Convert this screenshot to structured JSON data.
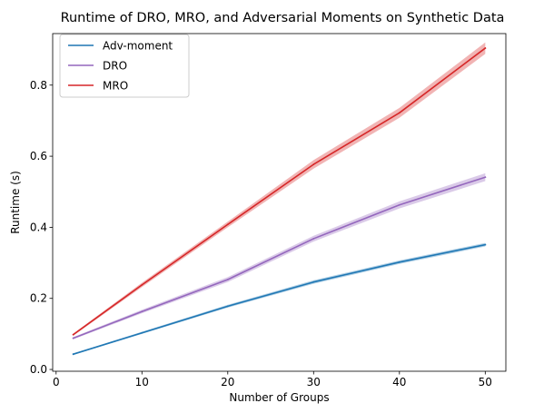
{
  "chart_data": {
    "type": "line",
    "title": "Runtime of DRO, MRO, and Adversarial Moments on Synthetic Data",
    "xlabel": "Number of Groups",
    "ylabel": "Runtime (s)",
    "xlim": [
      -0.4,
      52.4
    ],
    "ylim": [
      -0.005,
      0.945
    ],
    "xticks": [
      0,
      10,
      20,
      30,
      40,
      50
    ],
    "yticks": [
      0.0,
      0.2,
      0.4,
      0.6,
      0.8
    ],
    "xtick_labels": [
      "0",
      "10",
      "20",
      "30",
      "40",
      "50"
    ],
    "ytick_labels": [
      "0.0",
      "0.2",
      "0.4",
      "0.6",
      "0.8"
    ],
    "grid": false,
    "legend_position": "upper-left",
    "x": [
      2,
      10,
      20,
      30,
      40,
      50
    ],
    "series": [
      {
        "name": "Adv-moment",
        "color": "#1f77b4",
        "values": [
          0.043,
          0.103,
          0.178,
          0.246,
          0.302,
          0.351
        ],
        "lower": [
          0.041,
          0.1,
          0.174,
          0.241,
          0.297,
          0.346
        ],
        "upper": [
          0.045,
          0.106,
          0.182,
          0.251,
          0.307,
          0.356
        ]
      },
      {
        "name": "DRO",
        "color": "#9467bd",
        "values": [
          0.088,
          0.163,
          0.253,
          0.368,
          0.463,
          0.541
        ],
        "lower": [
          0.085,
          0.158,
          0.246,
          0.36,
          0.453,
          0.53
        ],
        "upper": [
          0.091,
          0.168,
          0.26,
          0.376,
          0.473,
          0.552
        ]
      },
      {
        "name": "MRO",
        "color": "#d62728",
        "values": [
          0.098,
          0.238,
          0.408,
          0.577,
          0.722,
          0.904
        ],
        "lower": [
          0.095,
          0.232,
          0.4,
          0.565,
          0.708,
          0.888
        ],
        "upper": [
          0.101,
          0.244,
          0.416,
          0.589,
          0.736,
          0.92
        ]
      }
    ]
  }
}
